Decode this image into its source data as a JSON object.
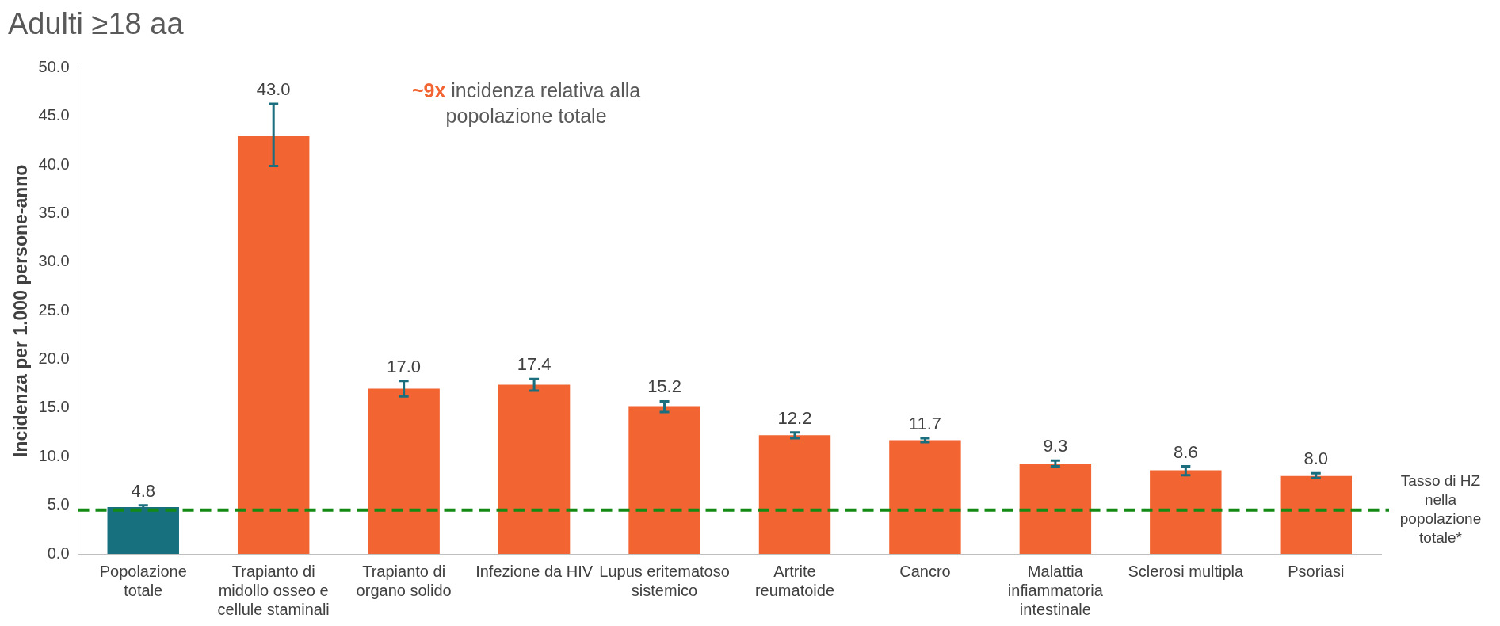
{
  "chart_data": {
    "type": "bar",
    "title": "Adulti ≥18 aa",
    "ylabel": "Incidenza per 1.000 persone-anno",
    "categories": [
      "Popolazione totale",
      "Trapianto di midollo osseo e cellule staminali",
      "Trapianto di organo solido",
      "Infezione da HIV",
      "Lupus eritematoso sistemico",
      "Artrite reumatoide",
      "Cancro",
      "Malattia infiammatoria intestinale",
      "Sclerosi multipla",
      "Psoriasi"
    ],
    "values": [
      4.8,
      43.0,
      17.0,
      17.4,
      15.2,
      12.2,
      11.7,
      9.3,
      8.6,
      8.0
    ],
    "colors": [
      "#17707e",
      "#f26532",
      "#f26532",
      "#f26532",
      "#f26532",
      "#f26532",
      "#f26532",
      "#f26532",
      "#f26532",
      "#f26532"
    ],
    "errors": [
      [
        4.6,
        5.0
      ],
      [
        39.9,
        46.3
      ],
      [
        16.2,
        17.8
      ],
      [
        16.8,
        18.0
      ],
      [
        14.6,
        15.7
      ],
      [
        11.9,
        12.5
      ],
      [
        11.5,
        11.9
      ],
      [
        9.0,
        9.6
      ],
      [
        8.1,
        9.0
      ],
      [
        7.8,
        8.3
      ]
    ],
    "ylim": [
      0,
      50
    ],
    "yticks": [
      {
        "value": 0,
        "label": "0.0"
      },
      {
        "value": 5,
        "label": "5.0"
      },
      {
        "value": 10,
        "label": "10.0"
      },
      {
        "value": 15,
        "label": "15.0"
      },
      {
        "value": 20,
        "label": "20.0"
      },
      {
        "value": 25,
        "label": "25.0"
      },
      {
        "value": 30,
        "label": "30.0"
      },
      {
        "value": 35,
        "label": "35.0"
      },
      {
        "value": 40,
        "label": "40.0"
      },
      {
        "value": 45,
        "label": "45.0"
      },
      {
        "value": 50,
        "label": "50.0"
      }
    ],
    "value_labels": [
      "4.8",
      "43.0",
      "17.0",
      "17.4",
      "15.2",
      "12.2",
      "11.7",
      "9.3",
      "8.6",
      "8.0"
    ],
    "ref_lines": [
      {
        "axis": "y",
        "value": 4.5,
        "label": "Tasso di HZ nella popolazione totale*",
        "color": "#138a13",
        "line_style": "dashed"
      }
    ],
    "annotations": [
      "~9x incidenza relativa alla popolazione totale"
    ],
    "grid": false,
    "legend": false
  }
}
